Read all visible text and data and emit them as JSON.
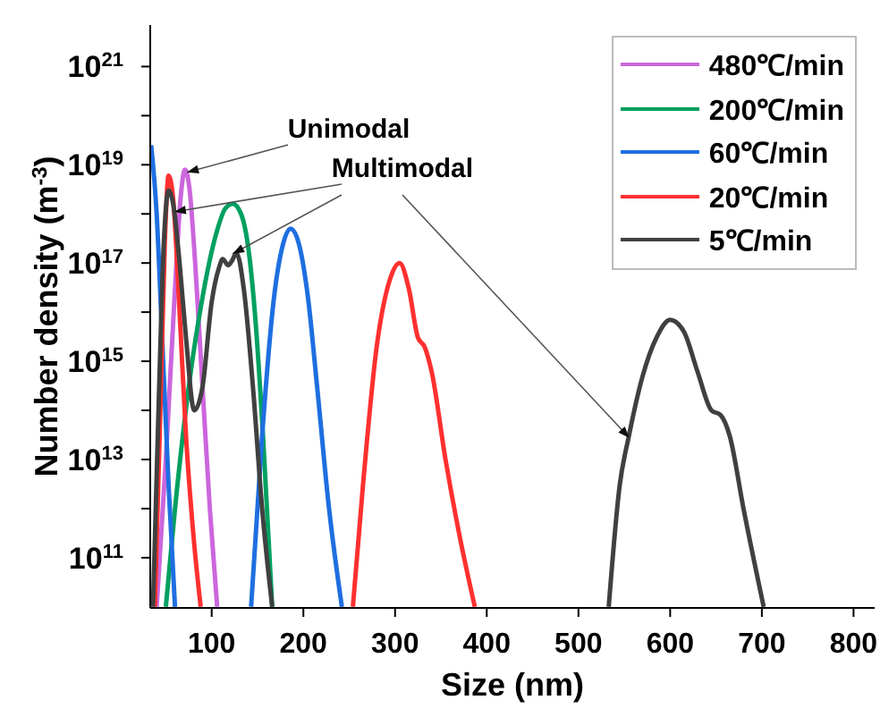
{
  "chart_data": {
    "type": "line",
    "xlabel": "Size (nm)",
    "ylabel": "Number density (m$^{-3}$)",
    "log": "y",
    "grid": false,
    "legend": "top right",
    "marker": "none",
    "line_style": "solid",
    "xlim": [
      33,
      823
    ],
    "xticks": [
      100,
      200,
      300,
      400,
      500,
      600,
      700,
      800
    ],
    "ylim": [
      9500000000.0,
      7e+21
    ],
    "yticks": [
      {
        "value": 100000000000.0,
        "label": "10$^{11}$"
      },
      {
        "value": 1000000000000.0,
        "label": null
      },
      {
        "value": 10000000000000.0,
        "label": "10$^{13}$"
      },
      {
        "value": 100000000000000.0,
        "label": null
      },
      {
        "value": 1000000000000000.0,
        "label": "10$^{15}$"
      },
      {
        "value": 1e+16,
        "label": null
      },
      {
        "value": 1e+17,
        "label": "10$^{17}$"
      },
      {
        "value": 1e+18,
        "label": null
      },
      {
        "value": 1e+19,
        "label": "10$^{19}$"
      },
      {
        "value": 1e+20,
        "label": null
      },
      {
        "value": 1e+21,
        "label": "10$^{21}$"
      }
    ],
    "annotations": [
      {
        "text": "Unimodal",
        "x": 73,
        "y": 7e+18
      },
      {
        "text": "Multimodal",
        "x": 59,
        "y": 1.1e+18
      }
    ],
    "series": [
      {
        "name": "480℃/min",
        "color": "#cc66dd",
        "x": [
          40,
          50,
          60,
          66,
          71,
          76,
          82,
          90,
          98,
          106
        ],
        "values": [
          10000000000.0,
          10000000000000.0,
          3e+16,
          2e+18,
          8e+18,
          3e+18,
          1e+17,
          300000000000000.0,
          1000000000000.0,
          10000000000.0
        ]
      },
      {
        "name": "200℃/min",
        "color": "#00a060",
        "x": [
          50,
          60,
          75,
          90,
          105,
          115,
          123,
          132,
          140,
          148,
          156,
          166
        ],
        "values": [
          10000000000.0,
          1000000000000.0,
          300000000000000.0,
          2e+16,
          4e+17,
          1.3e+18,
          1.6e+18,
          1e+18,
          2e+17,
          6000000000000000.0,
          30000000000000.0,
          10000000000.0
        ]
      },
      {
        "name": "60℃/min",
        "color": "#1e6fe0",
        "x": [
          34,
          40,
          46,
          53,
          60,
          100,
          143,
          155,
          168,
          178,
          186,
          195,
          205,
          215,
          228,
          242
        ],
        "values": [
          2.5e+19,
          1e+18,
          3000000000000000.0,
          3000000000000.0,
          10000000000.0,
          null,
          10000000000.0,
          30000000000000.0,
          2e+16,
          2.5e+17,
          5e+17,
          2.5e+17,
          2e+16,
          300000000000000.0,
          1000000000000.0,
          10000000000.0
        ]
      },
      {
        "name": "20℃/min",
        "color": "#ff3030",
        "x": [
          38,
          44,
          49,
          53,
          58,
          65,
          72,
          80,
          88,
          170,
          254,
          265,
          280,
          295,
          305,
          315,
          325,
          332,
          340,
          355,
          370,
          387
        ],
        "values": [
          10000000000.0,
          100000000000000.0,
          3e+17,
          6e+18,
          2e+18,
          1e+16,
          30000000000000.0,
          300000000000.0,
          10000000000.0,
          null,
          10000000000.0,
          3000000000000.0,
          2000000000000000.0,
          5e+16,
          1e+17,
          3e+16,
          3000000000000000.0,
          2000000000000000.0,
          600000000000000.0,
          10000000000000.0,
          300000000000.0,
          10000000000.0
        ]
      },
      {
        "name": "5℃/min",
        "color": "#404040",
        "x": [
          36,
          42,
          48,
          53,
          58,
          65,
          72,
          81,
          90,
          100,
          108,
          112,
          118,
          122,
          127,
          135,
          145,
          155,
          166,
          350,
          533,
          545,
          555,
          570,
          585,
          600,
          615,
          630,
          645,
          655,
          665,
          680,
          702
        ],
        "values": [
          10000000000.0,
          100000000000000.0,
          3e+17,
          3e+18,
          1.6e+18,
          1e+17,
          3000000000000000.0,
          100000000000000.0,
          300000000000000.0,
          1.6e+16,
          8e+16,
          1.2e+17,
          9e+16,
          1.1e+17,
          1.6e+17,
          3e+16,
          300000000000000.0,
          1000000000000.0,
          10000000000.0,
          null,
          10000000000.0,
          3000000000000.0,
          30000000000000.0,
          500000000000000.0,
          3000000000000000.0,
          7000000000000000.0,
          4000000000000000.0,
          600000000000000.0,
          100000000000000.0,
          80000000000000.0,
          30000000000000.0,
          1000000000000.0,
          10000000000.0
        ]
      }
    ]
  }
}
